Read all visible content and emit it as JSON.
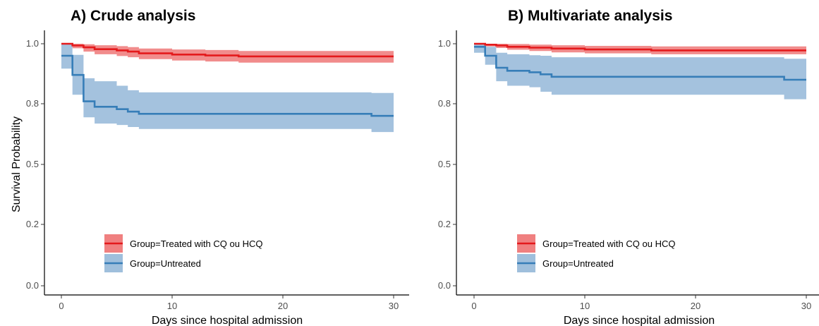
{
  "chart_data": [
    {
      "type": "line",
      "title": "A) Crude analysis",
      "xlabel": "Days since hospital admission",
      "ylabel": "Survival Probability",
      "xlim": [
        0,
        30
      ],
      "ylim": [
        0,
        1
      ],
      "xticks": [
        0,
        10,
        20,
        30
      ],
      "yticks": [
        0.0,
        0.2,
        0.5,
        0.8,
        1.0
      ],
      "ytick_labels": [
        "0.0",
        "0.2",
        "0.5",
        "0.8",
        "1.0"
      ],
      "grid": false,
      "legend_position": "bottom-left",
      "series": [
        {
          "name": "Group=Treated with CQ ou HCQ",
          "color": "#e41a1c",
          "ci_color": "#f08080",
          "step_x": [
            0,
            1,
            2,
            3,
            5,
            6,
            7,
            10,
            13,
            16,
            30
          ],
          "step_y": [
            1.0,
            0.994,
            0.988,
            0.982,
            0.978,
            0.974,
            0.968,
            0.964,
            0.961,
            0.958,
            0.958
          ],
          "lower": [
            1.0,
            0.985,
            0.974,
            0.965,
            0.959,
            0.955,
            0.949,
            0.944,
            0.941,
            0.937,
            0.937
          ],
          "upper": [
            1.0,
            1.0,
            0.998,
            0.995,
            0.992,
            0.989,
            0.984,
            0.981,
            0.979,
            0.976,
            0.976
          ]
        },
        {
          "name": "Group=Untreated",
          "color": "#377eb8",
          "ci_color": "#9fbfdc",
          "step_x": [
            0,
            1,
            2,
            3,
            5,
            6,
            7,
            28,
            30
          ],
          "step_y": [
            0.96,
            0.896,
            0.808,
            0.785,
            0.773,
            0.761,
            0.75,
            0.74,
            0.74
          ],
          "lower": [
            0.917,
            0.83,
            0.733,
            0.702,
            0.695,
            0.685,
            0.675,
            0.66,
            0.66
          ],
          "upper": [
            1.0,
            0.963,
            0.885,
            0.875,
            0.86,
            0.845,
            0.838,
            0.836,
            0.836
          ]
        }
      ]
    },
    {
      "type": "line",
      "title": "B) Multivariate analysis",
      "xlabel": "Days since hospital admission",
      "ylabel": "",
      "xlim": [
        0,
        30
      ],
      "ylim": [
        0,
        1
      ],
      "xticks": [
        0,
        10,
        20,
        30
      ],
      "yticks": [
        0.0,
        0.2,
        0.5,
        0.8,
        1.0
      ],
      "ytick_labels": [
        "0.0",
        "0.2",
        "0.5",
        "0.8",
        "1.0"
      ],
      "grid": false,
      "legend_position": "bottom-left",
      "series": [
        {
          "name": "Group=Treated with CQ ou HCQ",
          "color": "#e41a1c",
          "ci_color": "#f08080",
          "step_x": [
            0,
            1,
            2,
            3,
            5,
            7,
            10,
            16,
            30
          ],
          "step_y": [
            1.0,
            0.997,
            0.994,
            0.99,
            0.987,
            0.984,
            0.981,
            0.978,
            0.978
          ],
          "lower": [
            0.995,
            0.991,
            0.986,
            0.98,
            0.976,
            0.971,
            0.968,
            0.965,
            0.965
          ],
          "upper": [
            1.0,
            1.0,
            1.0,
            0.999,
            0.997,
            0.995,
            0.993,
            0.991,
            0.991
          ]
        },
        {
          "name": "Group=Untreated",
          "color": "#377eb8",
          "ci_color": "#9fbfdc",
          "step_x": [
            0,
            1,
            2,
            3,
            5,
            6,
            7,
            28,
            30
          ],
          "step_y": [
            0.99,
            0.96,
            0.92,
            0.91,
            0.905,
            0.898,
            0.89,
            0.88,
            0.88
          ],
          "lower": [
            0.97,
            0.93,
            0.875,
            0.86,
            0.855,
            0.84,
            0.83,
            0.815,
            0.815
          ],
          "upper": [
            1.0,
            0.99,
            0.97,
            0.965,
            0.962,
            0.96,
            0.955,
            0.95,
            0.95
          ]
        }
      ]
    }
  ]
}
